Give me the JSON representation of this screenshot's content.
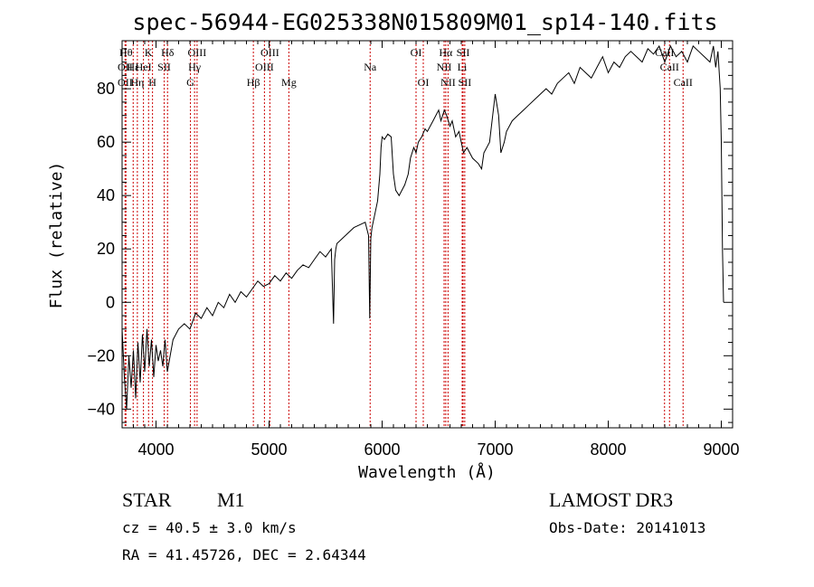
{
  "chart_data": {
    "type": "line",
    "title": "spec-56944-EG025338N015809M01_sp14-140.fits",
    "xlabel": "Wavelength (Å)",
    "ylabel": "Flux (relative)",
    "xlim": [
      3700,
      9100
    ],
    "ylim": [
      -47,
      98
    ],
    "xticks": [
      4000,
      5000,
      6000,
      7000,
      8000,
      9000
    ],
    "yticks": [
      -40,
      -20,
      0,
      20,
      40,
      60,
      80
    ],
    "line_color": "#000000",
    "marker_color": "#cc0000",
    "series": [
      {
        "x": [
          3700,
          3720,
          3740,
          3760,
          3780,
          3800,
          3820,
          3840,
          3860,
          3880,
          3900,
          3920,
          3940,
          3960,
          3980,
          4000,
          4020,
          4040,
          4060,
          4080,
          4100,
          4150,
          4200,
          4250,
          4300,
          4350,
          4400,
          4450,
          4500,
          4550,
          4600,
          4650,
          4700,
          4750,
          4800,
          4850,
          4900,
          4950,
          5000,
          5050,
          5100,
          5150,
          5200,
          5250,
          5300,
          5350,
          5400,
          5450,
          5500,
          5550,
          5570,
          5580,
          5590,
          5600,
          5650,
          5700,
          5750,
          5800,
          5850,
          5880,
          5890,
          5900,
          5910,
          5930,
          5960,
          5980,
          5990,
          6000,
          6020,
          6050,
          6080,
          6100,
          6120,
          6150,
          6200,
          6230,
          6250,
          6280,
          6300,
          6320,
          6350,
          6380,
          6400,
          6450,
          6500,
          6520,
          6550,
          6570,
          6600,
          6620,
          6650,
          6680,
          6700,
          6720,
          6750,
          6800,
          6850,
          6880,
          6900,
          6950,
          7000,
          7030,
          7050,
          7080,
          7100,
          7150,
          7200,
          7250,
          7300,
          7350,
          7400,
          7450,
          7500,
          7550,
          7600,
          7650,
          7700,
          7750,
          7800,
          7850,
          7900,
          7950,
          8000,
          8050,
          8100,
          8150,
          8200,
          8250,
          8300,
          8350,
          8400,
          8450,
          8500,
          8550,
          8600,
          8650,
          8700,
          8750,
          8800,
          8850,
          8900,
          8930,
          8950,
          8970,
          8990,
          9000,
          9010,
          9020
        ],
        "y": [
          -10,
          -28,
          -40,
          -20,
          -32,
          -18,
          -36,
          -15,
          -30,
          -12,
          -26,
          -10,
          -24,
          -14,
          -28,
          -16,
          -22,
          -18,
          -24,
          -14,
          -26,
          -14,
          -10,
          -8,
          -10,
          -4,
          -6,
          -2,
          -5,
          0,
          -2,
          3,
          0,
          4,
          2,
          5,
          8,
          6,
          7,
          10,
          8,
          11,
          9,
          12,
          14,
          13,
          16,
          19,
          17,
          20,
          -8,
          16,
          20,
          22,
          24,
          26,
          28,
          29,
          30,
          25,
          -6,
          24,
          28,
          32,
          38,
          48,
          58,
          62,
          61,
          63,
          62,
          48,
          42,
          40,
          44,
          48,
          54,
          58,
          56,
          60,
          62,
          65,
          64,
          68,
          72,
          68,
          72,
          70,
          66,
          68,
          62,
          64,
          60,
          56,
          58,
          54,
          52,
          50,
          56,
          60,
          78,
          70,
          56,
          60,
          64,
          68,
          70,
          72,
          74,
          76,
          78,
          80,
          78,
          82,
          84,
          86,
          82,
          88,
          86,
          84,
          88,
          92,
          86,
          90,
          88,
          92,
          94,
          92,
          90,
          95,
          93,
          96,
          90,
          96,
          92,
          94,
          90,
          96,
          94,
          92,
          90,
          96,
          88,
          94,
          80,
          60,
          20,
          0
        ]
      }
    ],
    "line_markers": [
      {
        "x": 3734,
        "row": 1,
        "label": "Hθ"
      },
      {
        "x": 3727,
        "row": 2,
        "label": "OII"
      },
      {
        "x": 3727,
        "row": 3,
        "label": "OII"
      },
      {
        "x": 3798,
        "row": 2,
        "label": "Hε"
      },
      {
        "x": 3835,
        "row": 3,
        "label": "Hη"
      },
      {
        "x": 3889,
        "row": 2,
        "label": "HeI"
      },
      {
        "x": 3934,
        "row": 1,
        "label": "K"
      },
      {
        "x": 3969,
        "row": 3,
        "label": "H"
      },
      {
        "x": 4072,
        "row": 2,
        "label": "SII"
      },
      {
        "x": 4102,
        "row": 1,
        "label": "Hδ"
      },
      {
        "x": 4304,
        "row": 3,
        "label": "G"
      },
      {
        "x": 4341,
        "row": 2,
        "label": "Hγ"
      },
      {
        "x": 4363,
        "row": 1,
        "label": "OIII"
      },
      {
        "x": 4861,
        "row": 3,
        "label": "Hβ"
      },
      {
        "x": 4959,
        "row": 2,
        "label": "OIII"
      },
      {
        "x": 5007,
        "row": 1,
        "label": "OIII"
      },
      {
        "x": 5175,
        "row": 3,
        "label": "Mg"
      },
      {
        "x": 5894,
        "row": 2,
        "label": "Na"
      },
      {
        "x": 6300,
        "row": 1,
        "label": "OI"
      },
      {
        "x": 6364,
        "row": 3,
        "label": "OI"
      },
      {
        "x": 6548,
        "row": 2,
        "label": "NII"
      },
      {
        "x": 6563,
        "row": 1,
        "label": "Hα"
      },
      {
        "x": 6583,
        "row": 3,
        "label": "NII"
      },
      {
        "x": 6708,
        "row": 2,
        "label": "Li"
      },
      {
        "x": 6716,
        "row": 1,
        "label": "SII"
      },
      {
        "x": 6731,
        "row": 3,
        "label": "SII"
      },
      {
        "x": 8498,
        "row": 1,
        "label": "CaII"
      },
      {
        "x": 8542,
        "row": 2,
        "label": "CaII"
      },
      {
        "x": 8662,
        "row": 3,
        "label": "CaII"
      }
    ]
  },
  "info": {
    "class": "STAR",
    "subclass": "M1",
    "survey": "LAMOST DR3",
    "cz": "cz = 40.5 ± 3.0 km/s",
    "obs_date": "Obs-Date: 20141013",
    "radec": "RA =  41.45726, DEC =   2.64344"
  }
}
